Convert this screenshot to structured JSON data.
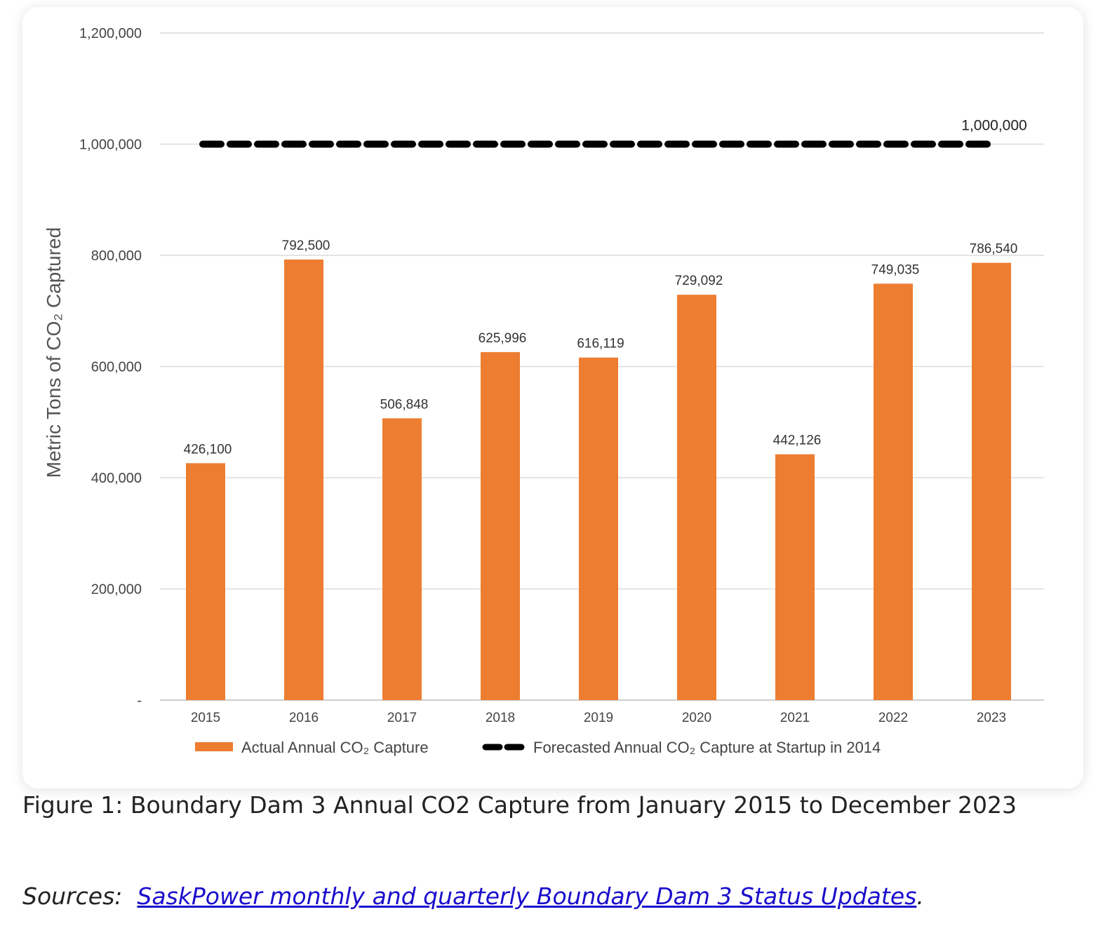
{
  "chart_data": {
    "type": "bar",
    "title": "",
    "xlabel": "",
    "ylabel": "Metric Tons of CO₂ Captured",
    "categories": [
      "2015",
      "2016",
      "2017",
      "2018",
      "2019",
      "2020",
      "2021",
      "2022",
      "2023"
    ],
    "series": [
      {
        "name": "Actual Annual CO₂ Capture",
        "type": "bar",
        "color": "#ED7D31",
        "values": [
          426100,
          792500,
          506848,
          625996,
          616119,
          729092,
          442126,
          749035,
          786540
        ],
        "labels": [
          "426,100",
          "792,500",
          "506,848",
          "625,996",
          "616,119",
          "729,092",
          "442,126",
          "749,035",
          "786,540"
        ]
      },
      {
        "name": "Forecasted Annual CO₂ Capture at Startup in 2014",
        "type": "line",
        "style": "dashed",
        "color": "#000000",
        "values": [
          1000000,
          1000000,
          1000000,
          1000000,
          1000000,
          1000000,
          1000000,
          1000000,
          1000000
        ],
        "end_label": "1,000,000"
      }
    ],
    "ylim": [
      0,
      1200000
    ],
    "yticks": [
      0,
      200000,
      400000,
      600000,
      800000,
      1000000,
      1200000
    ],
    "ytick_labels": [
      "-",
      "200,000",
      "400,000",
      "600,000",
      "800,000",
      "1,000,000",
      "1,200,000"
    ],
    "grid": true,
    "legend": "bottom"
  },
  "caption": "Figure 1: Boundary Dam 3 Annual CO2 Capture from January 2015 to December 2023",
  "sources": {
    "prefix": "Sources:",
    "link_text": "SaskPower monthly and quarterly Boundary Dam 3 Status Updates",
    "suffix": "."
  }
}
